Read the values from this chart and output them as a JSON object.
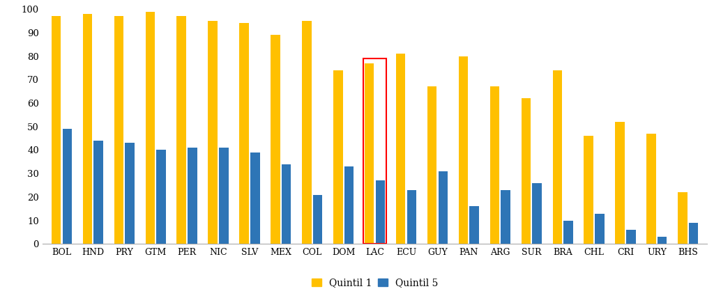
{
  "categories": [
    "BOL",
    "HND",
    "PRY",
    "GTM",
    "PER",
    "NIC",
    "SLV",
    "MEX",
    "COL",
    "DOM",
    "LAC",
    "ECU",
    "GUY",
    "PAN",
    "ARG",
    "SUR",
    "BRA",
    "CHL",
    "CRI",
    "URY",
    "BHS"
  ],
  "quintil1": [
    97,
    98,
    97,
    99,
    97,
    95,
    94,
    89,
    95,
    74,
    77,
    81,
    67,
    80,
    67,
    62,
    74,
    46,
    52,
    47,
    22
  ],
  "quintil5": [
    49,
    44,
    43,
    40,
    41,
    41,
    39,
    34,
    21,
    33,
    27,
    23,
    31,
    16,
    23,
    26,
    10,
    13,
    6,
    3,
    9
  ],
  "color_q1": "#FFC000",
  "color_q5": "#2E75B6",
  "highlight_index": 10,
  "highlight_color": "red",
  "legend_q1": "Quintil 1",
  "legend_q5": "Quintil 5",
  "ylim": [
    0,
    100
  ],
  "yticks": [
    0,
    10,
    20,
    30,
    40,
    50,
    60,
    70,
    80,
    90,
    100
  ],
  "background_color": "#ffffff",
  "bar_width": 0.3,
  "bar_spacing": 0.05,
  "figsize": [
    10.24,
    4.38
  ],
  "dpi": 100
}
